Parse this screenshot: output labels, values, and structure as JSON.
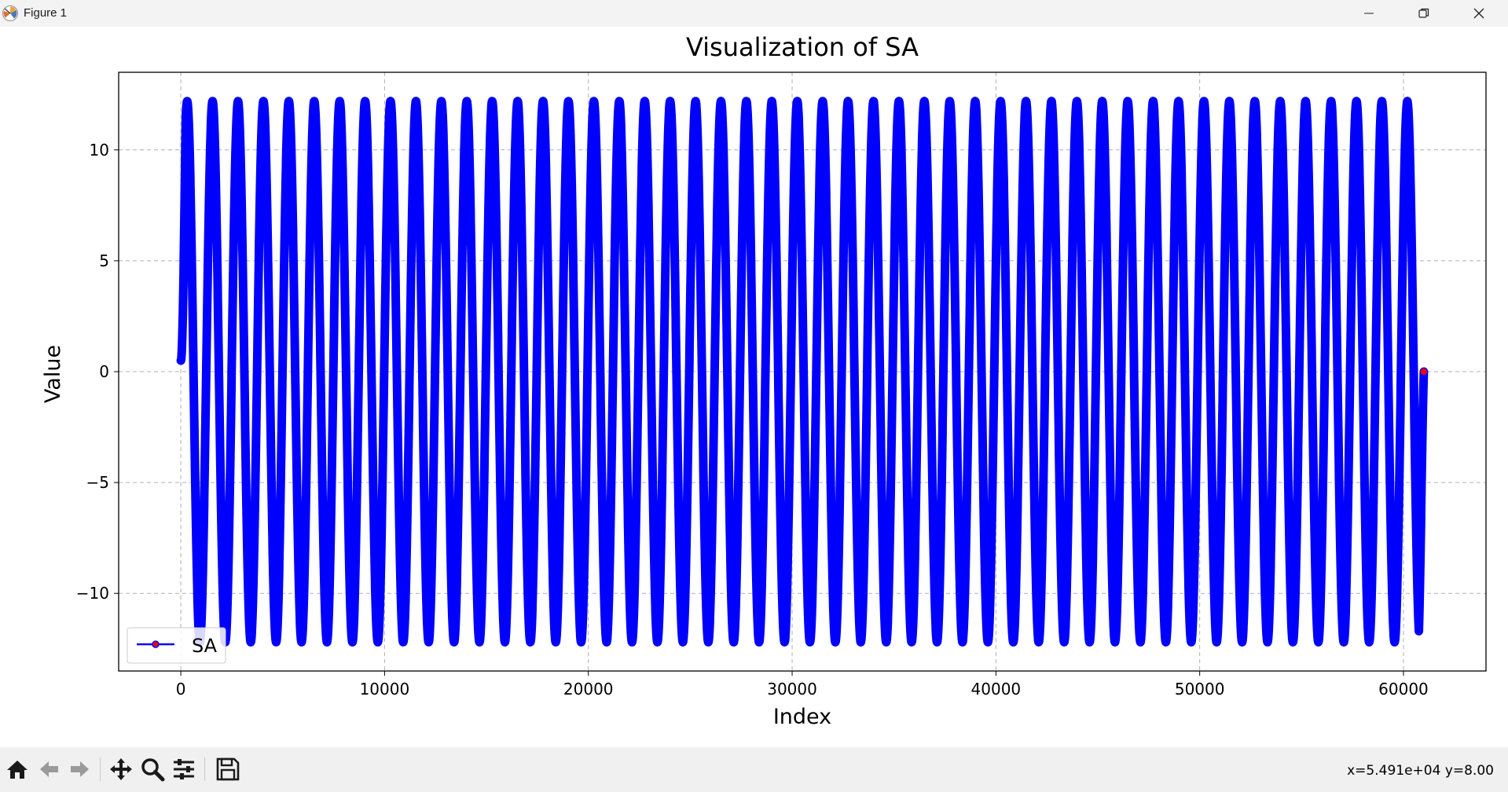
{
  "window": {
    "title": "Figure 1",
    "app_icon": "matplotlib-logo-icon",
    "controls": [
      "minimize-icon",
      "restore-icon",
      "close-icon"
    ]
  },
  "chart_data": {
    "type": "line",
    "title": "Visualization of SA",
    "xlabel": "Index",
    "ylabel": "Value",
    "xlim": [
      -3050,
      64050
    ],
    "ylim": [
      -13.5,
      13.5
    ],
    "xticks": [
      0,
      10000,
      20000,
      30000,
      40000,
      50000,
      60000
    ],
    "xtick_labels": [
      "0",
      "10000",
      "20000",
      "30000",
      "40000",
      "50000",
      "60000"
    ],
    "yticks": [
      10,
      5,
      0,
      -5,
      -10
    ],
    "ytick_labels": [
      "10",
      "5",
      "0",
      "−5",
      "−10"
    ],
    "grid": true,
    "legend_position": "lower-left",
    "series": [
      {
        "name": "SA",
        "line_color": "#0000ff",
        "marker_color": "#ff0000",
        "marker": "circle",
        "x_start": 0,
        "x_end": 61000,
        "cycles": 48.9,
        "amplitude": 12.2,
        "start_value": 0.5,
        "end_value": 0
      }
    ]
  },
  "toolbar": {
    "tools": [
      "home-icon",
      "back-icon",
      "forward-icon",
      "pan-icon",
      "zoom-icon",
      "configure-subplots-icon",
      "save-icon"
    ],
    "coords": "x=5.491e+04 y=8.00"
  },
  "colors": {
    "line": "#0000ff",
    "marker": "#ff0000",
    "grid": "#b0b0b0",
    "toolbar_bg": "#f0f0f0"
  }
}
